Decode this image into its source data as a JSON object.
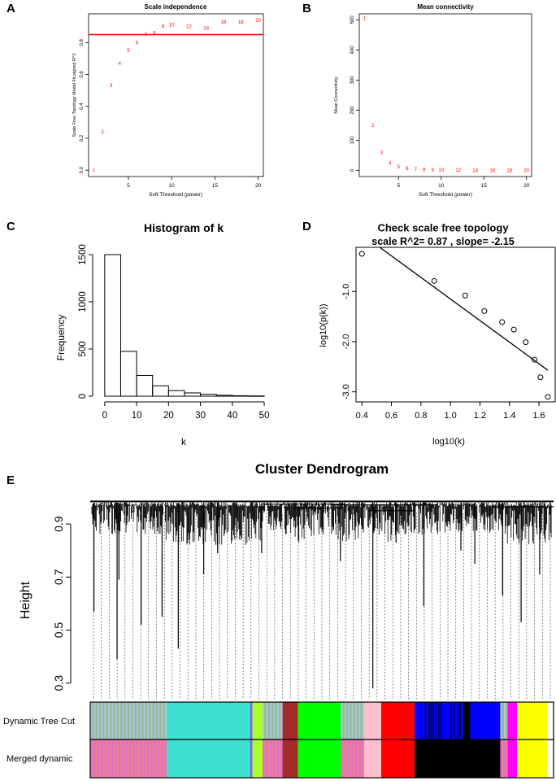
{
  "panel_letters": {
    "a": "A",
    "b": "B",
    "c": "C",
    "d": "D",
    "e": "E"
  },
  "colors": {
    "red": "#ff0000",
    "black": "#000000"
  },
  "chart_data": [
    {
      "id": "A",
      "type": "scatter",
      "title": "Scale independence",
      "xlabel": "Soft Threshold (power)",
      "ylabel": "Scale Free Topology Model Fit,signed R^2",
      "xlim": [
        0.4,
        20.6
      ],
      "ylim": [
        -0.04,
        0.98
      ],
      "xticks": [
        5,
        10,
        15,
        20
      ],
      "yticks": [
        0.0,
        0.2,
        0.4,
        0.6,
        0.8
      ],
      "ytick_labels": [
        "0.0",
        "0.2",
        "0.4",
        "0.6",
        "0.8"
      ],
      "threshold_line": 0.85,
      "point_labels": [
        "1",
        "2",
        "3",
        "4",
        "5",
        "6",
        "7",
        "8",
        "9",
        "10",
        "12",
        "14",
        "16",
        "18",
        "20"
      ],
      "x": [
        1,
        2,
        3,
        4,
        5,
        6,
        7,
        8,
        9,
        10,
        12,
        14,
        16,
        18,
        20
      ],
      "y": [
        0.0,
        0.24,
        0.53,
        0.67,
        0.75,
        0.8,
        0.85,
        0.86,
        0.9,
        0.91,
        0.9,
        0.89,
        0.93,
        0.93,
        0.94
      ]
    },
    {
      "id": "B",
      "type": "scatter",
      "title": "Mean connectivity",
      "xlabel": "Soft Threshold (power)",
      "ylabel": "Mean Connectivity",
      "xlim": [
        0.4,
        20.6
      ],
      "ylim": [
        -20,
        520
      ],
      "xticks": [
        5,
        10,
        15,
        20
      ],
      "yticks": [
        0,
        100,
        200,
        300,
        400,
        500
      ],
      "point_labels": [
        "1",
        "2",
        "3",
        "4",
        "5",
        "6",
        "7",
        "8",
        "9",
        "10",
        "12",
        "14",
        "16",
        "18",
        "20"
      ],
      "x": [
        1,
        2,
        3,
        4,
        5,
        6,
        7,
        8,
        9,
        10,
        12,
        14,
        16,
        18,
        20
      ],
      "y": [
        505,
        150,
        60,
        25,
        12,
        7,
        4,
        3,
        2,
        1.5,
        1,
        0.6,
        0.4,
        0.3,
        0.2
      ]
    },
    {
      "id": "C",
      "type": "bar",
      "title": "Histogram of k",
      "xlabel": "k",
      "ylabel": "Frequency",
      "xlim": [
        -2,
        51
      ],
      "ylim": [
        0,
        1560
      ],
      "xticks": [
        0,
        10,
        20,
        30,
        40,
        50
      ],
      "yticks": [
        0,
        500,
        1000,
        1500
      ],
      "bin_edges": [
        0,
        5,
        10,
        15,
        20,
        25,
        30,
        35,
        40,
        45,
        50
      ],
      "values": [
        1500,
        475,
        220,
        110,
        60,
        35,
        20,
        10,
        5,
        3
      ]
    },
    {
      "id": "D",
      "type": "scatter",
      "title": "Check scale free topology",
      "subtitle": "scale R^2= 0.87 , slope= -2.15",
      "xlabel": "log10(k)",
      "ylabel": "log10(p(k))",
      "xlim": [
        0.36,
        1.71
      ],
      "ylim": [
        -3.2,
        -0.12
      ],
      "xticks": [
        0.4,
        0.6,
        0.8,
        1.0,
        1.2,
        1.4,
        1.6
      ],
      "xtick_labels": [
        "0.4",
        "0.6",
        "0.8",
        "1.0",
        "1.2",
        "1.4",
        "1.6"
      ],
      "yticks": [
        -1.0,
        -2.0,
        -3.0
      ],
      "ytick_labels": [
        "-1.0",
        "-2.0",
        "-3.0"
      ],
      "x": [
        0.4,
        0.89,
        1.1,
        1.23,
        1.35,
        1.43,
        1.51,
        1.57,
        1.61,
        1.66
      ],
      "y": [
        -0.25,
        -0.79,
        -1.08,
        -1.39,
        -1.61,
        -1.76,
        -2.01,
        -2.36,
        -2.71,
        -3.1
      ],
      "fit_line": {
        "intercept": 1.0,
        "slope": -2.15,
        "x_range": [
          0.4,
          1.66
        ]
      }
    },
    {
      "id": "E",
      "type": "dendrogram",
      "title": "Cluster Dendrogram",
      "ylabel": "Height",
      "ylim": [
        0.25,
        1.02
      ],
      "yticks": [
        0.3,
        0.5,
        0.7,
        0.9
      ],
      "ytick_labels": [
        "0.3",
        "0.5",
        "0.7",
        "0.9"
      ],
      "color_rows": [
        {
          "label": "Dynamic Tree Cut",
          "segments": [
            {
              "frac": 0.165,
              "color": "striped"
            },
            {
              "frac": 0.18,
              "color": "#40e0d0"
            },
            {
              "frac": 0.005,
              "color": "#7b68ee"
            },
            {
              "frac": 0.022,
              "color": "#adff2f"
            },
            {
              "frac": 0.043,
              "color": "striped"
            },
            {
              "frac": 0.033,
              "color": "#a52a2a"
            },
            {
              "frac": 0.093,
              "color": "#00ff00"
            },
            {
              "frac": 0.05,
              "color": "striped"
            },
            {
              "frac": 0.037,
              "color": "#ffc0cb"
            },
            {
              "frac": 0.072,
              "color": "#ff0000"
            },
            {
              "frac": 0.105,
              "color": "#0000ff"
            },
            {
              "frac": 0.015,
              "color": "#000000"
            },
            {
              "frac": 0.065,
              "color": "#0000ff"
            },
            {
              "frac": 0.016,
              "color": "striped"
            },
            {
              "frac": 0.02,
              "color": "#ff00ff"
            },
            {
              "frac": 0.066,
              "color": "#ffff00"
            }
          ]
        },
        {
          "label": "Merged dynamic",
          "segments": [
            {
              "frac": 0.165,
              "color": "striped"
            },
            {
              "frac": 0.18,
              "color": "#40e0d0"
            },
            {
              "frac": 0.005,
              "color": "#7b68ee"
            },
            {
              "frac": 0.022,
              "color": "#adff2f"
            },
            {
              "frac": 0.043,
              "color": "striped"
            },
            {
              "frac": 0.033,
              "color": "#a52a2a"
            },
            {
              "frac": 0.093,
              "color": "#00ff00"
            },
            {
              "frac": 0.05,
              "color": "striped"
            },
            {
              "frac": 0.037,
              "color": "#ffc0cb"
            },
            {
              "frac": 0.072,
              "color": "#ff0000"
            },
            {
              "frac": 0.185,
              "color": "#000000"
            },
            {
              "frac": 0.016,
              "color": "striped"
            },
            {
              "frac": 0.02,
              "color": "#ff00ff"
            },
            {
              "frac": 0.066,
              "color": "#ffff00"
            }
          ]
        }
      ]
    }
  ]
}
